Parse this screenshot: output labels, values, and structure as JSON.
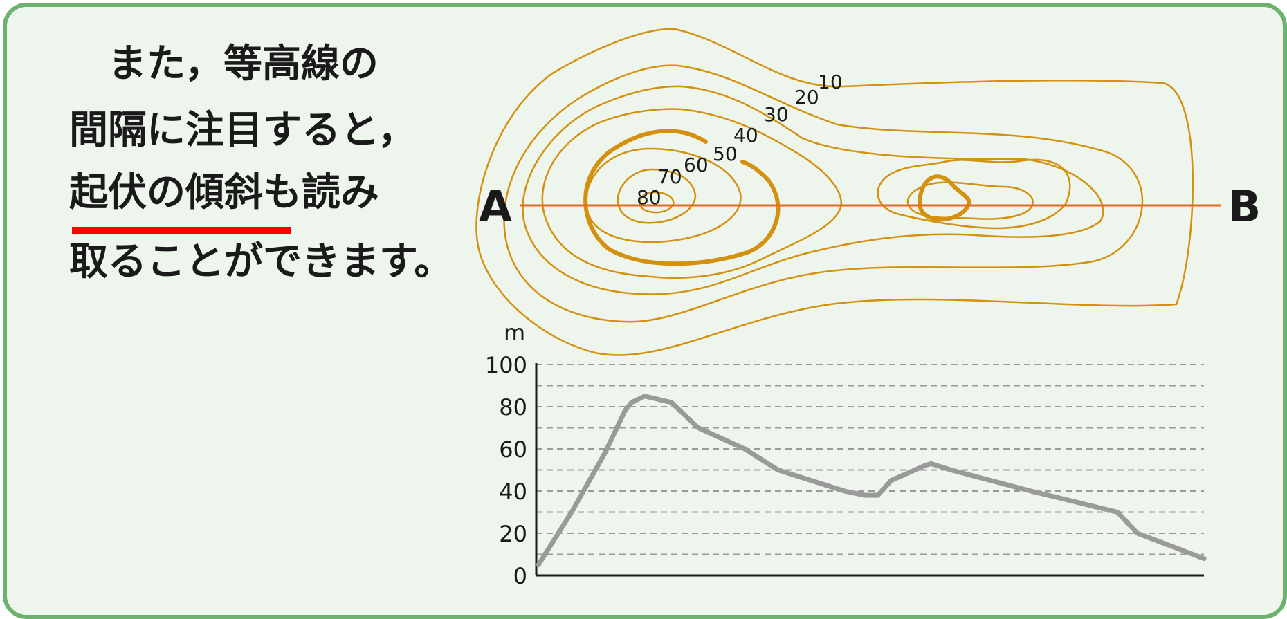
{
  "text": {
    "line1": "　また，等高線の",
    "line2": "間隔に注目すると，",
    "line3": "起伏の傾斜も読み",
    "line4": "取ることができます。"
  },
  "map": {
    "point_a": "A",
    "point_b": "B",
    "contour_labels": [
      "10",
      "20",
      "30",
      "40",
      "50",
      "60",
      "70",
      "80"
    ]
  },
  "chart_data": {
    "type": "line",
    "ylabel": "m",
    "ylim": [
      0,
      100
    ],
    "y_ticks": [
      "0",
      "20",
      "40",
      "60",
      "80",
      "100"
    ],
    "gridlines_every": 10,
    "x": [
      0,
      0.05,
      0.1,
      0.13,
      0.14,
      0.16,
      0.2,
      0.24,
      0.31,
      0.36,
      0.46,
      0.49,
      0.51,
      0.53,
      0.58,
      0.59,
      0.62,
      0.74,
      0.87,
      0.9,
      1.0
    ],
    "series": [
      {
        "color": "#9a9a9a",
        "values": [
          5,
          30,
          58,
          78,
          82,
          85,
          82,
          70,
          60,
          50,
          40,
          38,
          38,
          45,
          52,
          53,
          50,
          40,
          30,
          20,
          8
        ]
      }
    ]
  }
}
